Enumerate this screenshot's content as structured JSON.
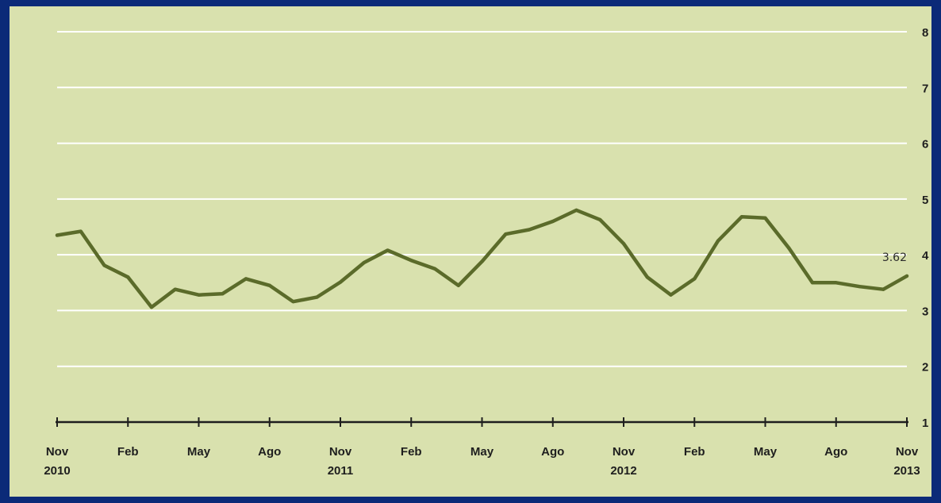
{
  "chart_data": {
    "type": "line",
    "title": "",
    "xlabel": "",
    "ylabel": "",
    "ylim": [
      1,
      8
    ],
    "yticks": [
      "1",
      "2",
      "3",
      "4",
      "5",
      "6",
      "7",
      "8"
    ],
    "grid": true,
    "y_axis_side": "right",
    "line_color": "#5b6b2a",
    "grid_color": "#ffffff",
    "background_color": "#d9e1ae",
    "frame_color": "#0b2a78",
    "x_ticks": [
      {
        "month": "Nov",
        "year": "2010"
      },
      {
        "month": "Feb",
        "year": ""
      },
      {
        "month": "May",
        "year": ""
      },
      {
        "month": "Ago",
        "year": ""
      },
      {
        "month": "Nov",
        "year": "2011"
      },
      {
        "month": "Feb",
        "year": ""
      },
      {
        "month": "May",
        "year": ""
      },
      {
        "month": "Ago",
        "year": ""
      },
      {
        "month": "Nov",
        "year": "2012"
      },
      {
        "month": "Feb",
        "year": ""
      },
      {
        "month": "May",
        "year": ""
      },
      {
        "month": "Ago",
        "year": ""
      },
      {
        "month": "Nov",
        "year": "2013"
      }
    ],
    "series": [
      {
        "x": [
          "2010-11",
          "2010-12",
          "2011-01",
          "2011-02",
          "2011-03",
          "2011-04",
          "2011-05",
          "2011-06",
          "2011-07",
          "2011-08",
          "2011-09",
          "2011-10",
          "2011-11",
          "2011-12",
          "2012-01",
          "2012-02",
          "2012-03",
          "2012-04",
          "2012-05",
          "2012-06",
          "2012-07",
          "2012-08",
          "2012-09",
          "2012-10",
          "2012-11",
          "2012-12",
          "2013-01",
          "2013-02",
          "2013-03",
          "2013-04",
          "2013-05",
          "2013-06",
          "2013-07",
          "2013-08",
          "2013-09",
          "2013-10",
          "2013-11"
        ],
        "values": [
          4.35,
          4.42,
          3.81,
          3.6,
          3.06,
          3.38,
          3.28,
          3.3,
          3.57,
          3.45,
          3.16,
          3.24,
          3.51,
          3.86,
          4.08,
          3.9,
          3.75,
          3.45,
          3.88,
          4.37,
          4.45,
          4.6,
          4.8,
          4.63,
          4.2,
          3.6,
          3.28,
          3.57,
          4.25,
          4.68,
          4.66,
          4.12,
          3.5,
          3.5,
          3.43,
          3.38,
          3.62
        ]
      }
    ],
    "annotations": [
      {
        "text": "3.62",
        "x": "2013-11",
        "y": 3.62
      }
    ]
  }
}
